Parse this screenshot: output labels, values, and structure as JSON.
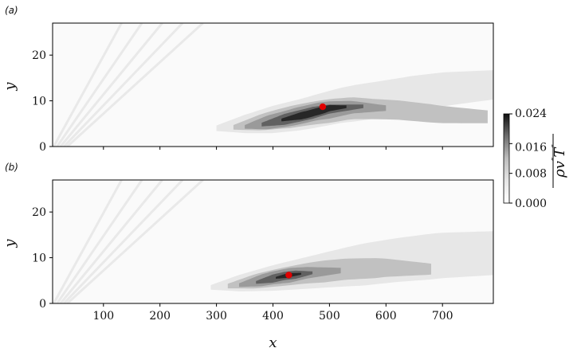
{
  "chart_data": {
    "type": "contour",
    "shared_xlabel": "x",
    "xlim": [
      10,
      790
    ],
    "xticks": [
      100,
      200,
      300,
      400,
      500,
      600,
      700
    ],
    "colormap": "Greys",
    "colorbar": {
      "label": "ρv″T″ (overline)",
      "label_base": "ρv",
      "label_second": "T",
      "range": [
        0.0,
        0.024
      ],
      "ticks": [
        {
          "value": 0.0,
          "label": "0.000"
        },
        {
          "value": 0.008,
          "label": "0.008"
        },
        {
          "value": 0.016,
          "label": "0.016"
        },
        {
          "value": 0.024,
          "label": "0.024"
        }
      ]
    },
    "panels": [
      {
        "label": "(a)",
        "ylabel": "y",
        "ylim": [
          0,
          27
        ],
        "yticks": [
          0,
          10,
          20
        ],
        "peak_marker": {
          "x": 488,
          "y": 8.7,
          "color": "#e00000"
        },
        "bands": [
          {
            "level": 0.002,
            "spine": [
              [
                300,
                4.0
              ],
              [
                380,
                5.5
              ],
              [
                450,
                7.0
              ],
              [
                520,
                9.0
              ],
              [
                600,
                10.5
              ],
              [
                700,
                12.5
              ],
              [
                790,
                13.5
              ]
            ],
            "half": [
              [
                300,
                0.6
              ],
              [
                350,
                2.0
              ],
              [
                400,
                3.0
              ],
              [
                470,
                3.6
              ],
              [
                550,
                4.0
              ],
              [
                650,
                4.0
              ],
              [
                790,
                3.2
              ]
            ]
          },
          {
            "level": 0.006,
            "spine": [
              [
                330,
                4.2
              ],
              [
                400,
                5.8
              ],
              [
                470,
                7.3
              ],
              [
                540,
                8.4
              ],
              [
                620,
                8.0
              ],
              [
                700,
                7.0
              ],
              [
                780,
                6.5
              ]
            ],
            "half": [
              [
                330,
                0.5
              ],
              [
                380,
                1.8
              ],
              [
                430,
                2.4
              ],
              [
                500,
                2.6
              ],
              [
                580,
                2.2
              ],
              [
                680,
                2.0
              ],
              [
                780,
                1.4
              ]
            ]
          },
          {
            "level": 0.01,
            "spine": [
              [
                350,
                4.3
              ],
              [
                420,
                6.0
              ],
              [
                480,
                7.7
              ],
              [
                540,
                8.6
              ],
              [
                600,
                8.4
              ]
            ],
            "half": [
              [
                350,
                0.4
              ],
              [
                390,
                1.5
              ],
              [
                440,
                1.9
              ],
              [
                500,
                1.9
              ],
              [
                600,
                0.6
              ]
            ]
          },
          {
            "level": 0.016,
            "spine": [
              [
                380,
                4.8
              ],
              [
                440,
                6.5
              ],
              [
                500,
                8.2
              ],
              [
                560,
                8.8
              ]
            ],
            "half": [
              [
                380,
                0.4
              ],
              [
                420,
                1.2
              ],
              [
                470,
                1.3
              ],
              [
                560,
                0.4
              ]
            ]
          },
          {
            "level": 0.022,
            "spine": [
              [
                415,
                5.8
              ],
              [
                460,
                7.0
              ],
              [
                500,
                8.4
              ],
              [
                530,
                8.7
              ]
            ],
            "half": [
              [
                415,
                0.3
              ],
              [
                450,
                0.8
              ],
              [
                490,
                0.8
              ],
              [
                530,
                0.3
              ]
            ]
          }
        ]
      },
      {
        "label": "(b)",
        "ylabel": "y",
        "ylim": [
          0,
          27
        ],
        "yticks": [
          0,
          10,
          20
        ],
        "peak_marker": {
          "x": 428,
          "y": 6.2,
          "color": "#e00000"
        },
        "bands": [
          {
            "level": 0.002,
            "spine": [
              [
                290,
                3.5
              ],
              [
                370,
                5.0
              ],
              [
                450,
                6.5
              ],
              [
                530,
                8.0
              ],
              [
                620,
                9.5
              ],
              [
                700,
                10.5
              ],
              [
                790,
                11.0
              ]
            ],
            "half": [
              [
                290,
                0.5
              ],
              [
                340,
                1.8
              ],
              [
                400,
                2.8
              ],
              [
                470,
                3.6
              ],
              [
                560,
                4.6
              ],
              [
                680,
                5.0
              ],
              [
                790,
                4.8
              ]
            ]
          },
          {
            "level": 0.006,
            "spine": [
              [
                320,
                3.8
              ],
              [
                390,
                5.3
              ],
              [
                460,
                6.6
              ],
              [
                530,
                7.5
              ],
              [
                600,
                7.8
              ],
              [
                680,
                7.5
              ]
            ],
            "half": [
              [
                320,
                0.5
              ],
              [
                370,
                1.6
              ],
              [
                420,
                2.0
              ],
              [
                490,
                2.4
              ],
              [
                580,
                2.2
              ],
              [
                680,
                1.2
              ]
            ]
          },
          {
            "level": 0.01,
            "spine": [
              [
                340,
                4.0
              ],
              [
                400,
                5.6
              ],
              [
                460,
                6.7
              ],
              [
                520,
                7.2
              ]
            ],
            "half": [
              [
                340,
                0.4
              ],
              [
                380,
                1.3
              ],
              [
                430,
                1.6
              ],
              [
                520,
                0.6
              ]
            ]
          },
          {
            "level": 0.016,
            "spine": [
              [
                370,
                4.6
              ],
              [
                420,
                6.0
              ],
              [
                470,
                6.7
              ]
            ],
            "half": [
              [
                370,
                0.3
              ],
              [
                400,
                0.9
              ],
              [
                440,
                0.9
              ],
              [
                470,
                0.3
              ]
            ]
          },
          {
            "level": 0.022,
            "spine": [
              [
                405,
                5.6
              ],
              [
                430,
                6.2
              ],
              [
                450,
                6.5
              ]
            ],
            "half": [
              [
                405,
                0.2
              ],
              [
                425,
                0.5
              ],
              [
                450,
                0.2
              ]
            ]
          }
        ]
      }
    ]
  }
}
